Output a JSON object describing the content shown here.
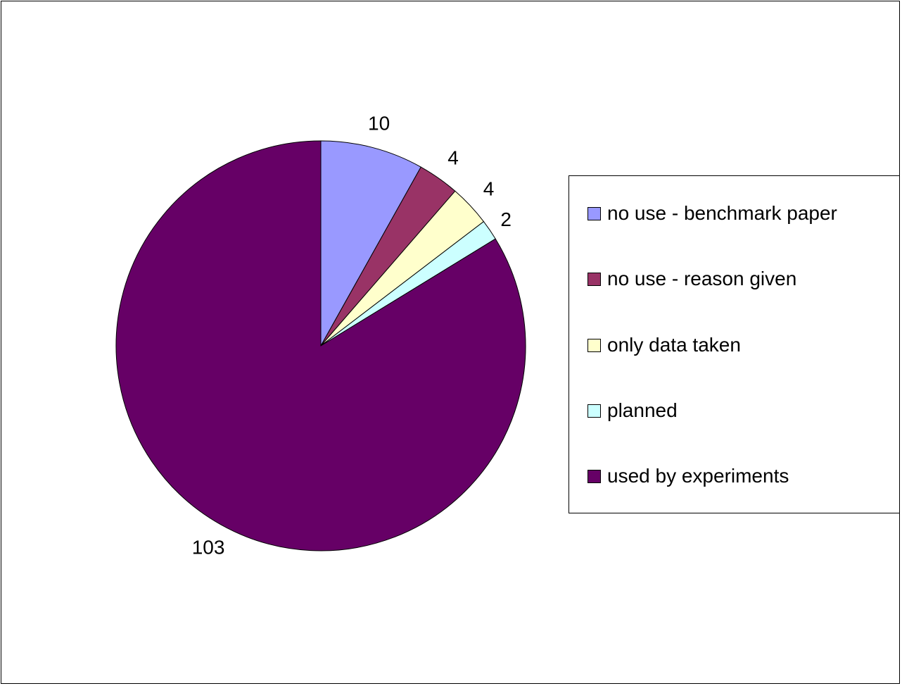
{
  "chart_data": {
    "type": "pie",
    "title": "",
    "legend_position": "right",
    "categories": [
      "no use - benchmark paper",
      "no use - reason given",
      "only data taken",
      "planned",
      "used by experiments"
    ],
    "values": [
      10,
      4,
      4,
      2,
      103
    ],
    "labels": [
      "10",
      "4",
      "4",
      "2",
      "103"
    ],
    "colors": [
      "#9999FF",
      "#993366",
      "#FFFFCC",
      "#CCFFFF",
      "#660066"
    ],
    "start_angle_deg": 0,
    "direction": "clockwise"
  },
  "legend": {
    "items": [
      {
        "label": "no use - benchmark paper",
        "color": "#9999FF"
      },
      {
        "label": "no use - reason given",
        "color": "#993366"
      },
      {
        "label": "only data taken",
        "color": "#FFFFCC"
      },
      {
        "label": "planned",
        "color": "#CCFFFF"
      },
      {
        "label": "used by experiments",
        "color": "#660066"
      }
    ]
  }
}
